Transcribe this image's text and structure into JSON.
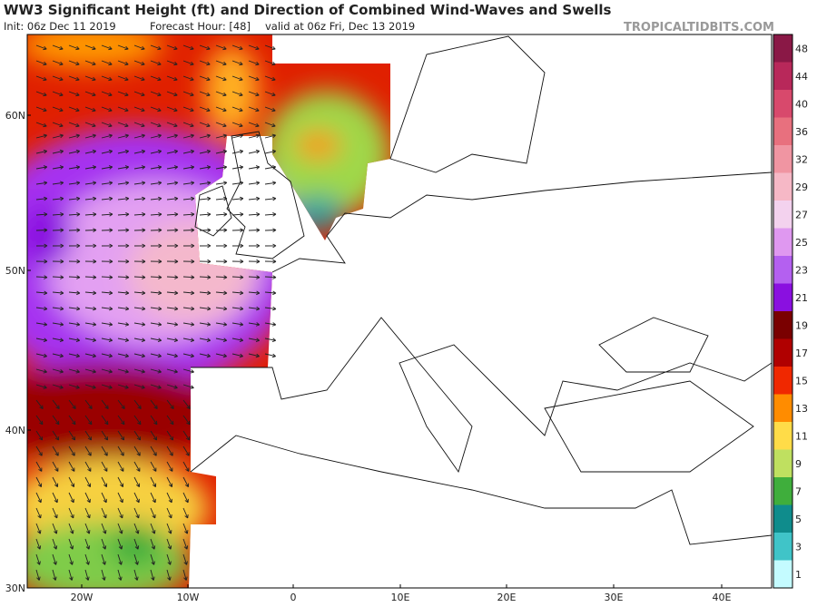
{
  "header": {
    "title": "WW3 Significant Height (ft) and Direction of Combined Wind-Waves and Swells",
    "init": "Init: 06z Dec 11 2019",
    "forecast_hour": "Forecast Hour: [48]",
    "valid": "valid at 06z Fri, Dec 13 2019",
    "source": "TROPICALTIDBITS.COM"
  },
  "map": {
    "lat_labels": [
      "60N",
      "50N",
      "40N",
      "30N"
    ],
    "lon_labels": [
      "20W",
      "10W",
      "0",
      "10E",
      "20E",
      "30E",
      "40E"
    ]
  },
  "colorbar": {
    "labels": [
      48,
      44,
      40,
      36,
      32,
      29,
      27,
      25,
      23,
      21,
      19,
      17,
      15,
      13,
      11,
      9,
      7,
      5,
      3,
      1
    ],
    "colors": [
      "#8a1846",
      "#b8285a",
      "#d8496c",
      "#e8707e",
      "#f095a2",
      "#f6b8c6",
      "#f3d2ee",
      "#df98f0",
      "#b460f0",
      "#8a10e0",
      "#7a0000",
      "#b00000",
      "#f02800",
      "#ff8c00",
      "#ffdc48",
      "#bfe060",
      "#3fae3c",
      "#0f8c8c",
      "#40c4c8",
      "#c4fbff"
    ]
  }
}
